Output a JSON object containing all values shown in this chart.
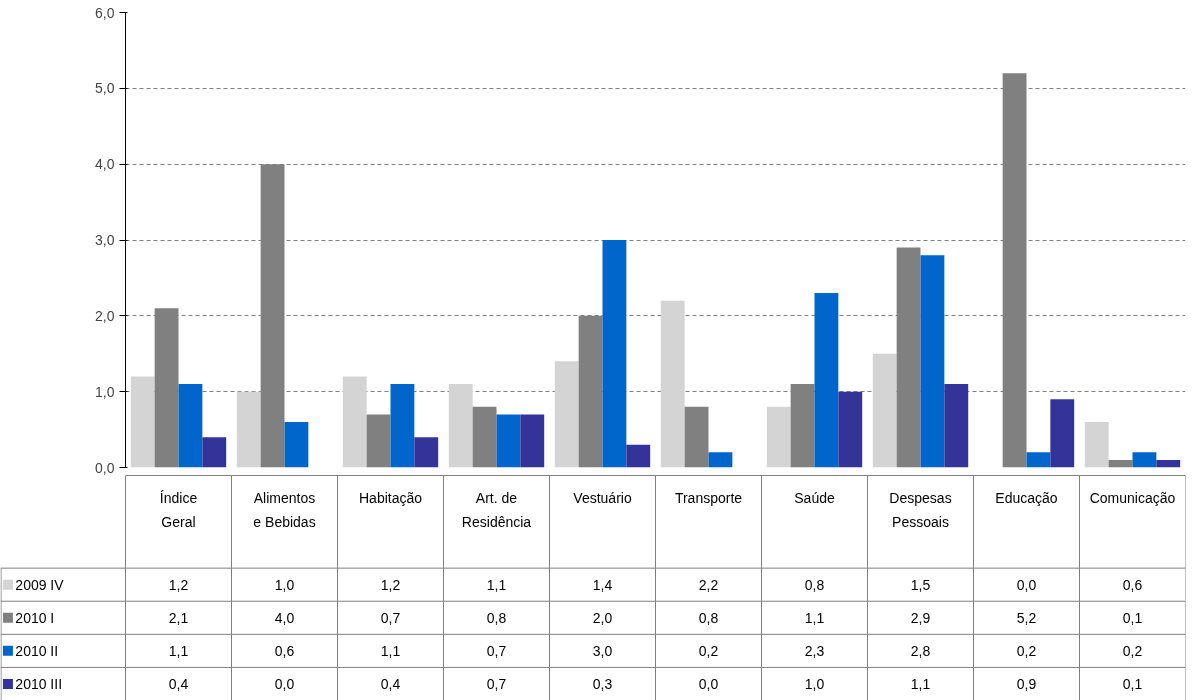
{
  "chart_data": {
    "type": "bar",
    "categories": [
      "Índice Geral",
      "Alimentos e Bebidas",
      "Habitação",
      "Art. de Residência",
      "Vestuário",
      "Transporte",
      "Saúde",
      "Despesas Pessoais",
      "Educação",
      "Comunicação"
    ],
    "series": [
      {
        "name": "2009 IV",
        "color": "#d4d4d4",
        "values": [
          1.2,
          1.0,
          1.2,
          1.1,
          1.4,
          2.2,
          0.8,
          1.5,
          0.0,
          0.6
        ],
        "value_labels": [
          "1,2",
          "1,0",
          "1,2",
          "1,1",
          "1,4",
          "2,2",
          "0,8",
          "1,5",
          "0,0",
          "0,6"
        ]
      },
      {
        "name": "2010 I",
        "color": "#808080",
        "values": [
          2.1,
          4.0,
          0.7,
          0.8,
          2.0,
          0.8,
          1.1,
          2.9,
          5.2,
          0.1
        ],
        "value_labels": [
          "2,1",
          "4,0",
          "0,7",
          "0,8",
          "2,0",
          "0,8",
          "1,1",
          "2,9",
          "5,2",
          "0,1"
        ]
      },
      {
        "name": "2010 II",
        "color": "#0066cc",
        "values": [
          1.1,
          0.6,
          1.1,
          0.7,
          3.0,
          0.2,
          2.3,
          2.8,
          0.2,
          0.2
        ],
        "value_labels": [
          "1,1",
          "0,6",
          "1,1",
          "0,7",
          "3,0",
          "0,2",
          "2,3",
          "2,8",
          "0,2",
          "0,2"
        ]
      },
      {
        "name": "2010 III",
        "color": "#333399",
        "values": [
          0.4,
          0.0,
          0.4,
          0.7,
          0.3,
          0.0,
          1.0,
          1.1,
          0.9,
          0.1
        ],
        "value_labels": [
          "0,4",
          "0,0",
          "0,4",
          "0,7",
          "0,3",
          "0,0",
          "1,0",
          "1,1",
          "0,9",
          "0,1"
        ]
      }
    ],
    "ylim": [
      0,
      6
    ],
    "yticks": [
      {
        "value": 0,
        "label": "0,0"
      },
      {
        "value": 1,
        "label": "1,0"
      },
      {
        "value": 2,
        "label": "2,0"
      },
      {
        "value": 3,
        "label": "3,0"
      },
      {
        "value": 4,
        "label": "4,0"
      },
      {
        "value": 5,
        "label": "5,0"
      },
      {
        "value": 6,
        "label": "6,0"
      }
    ],
    "grid": "y",
    "legend": "bottom left"
  }
}
